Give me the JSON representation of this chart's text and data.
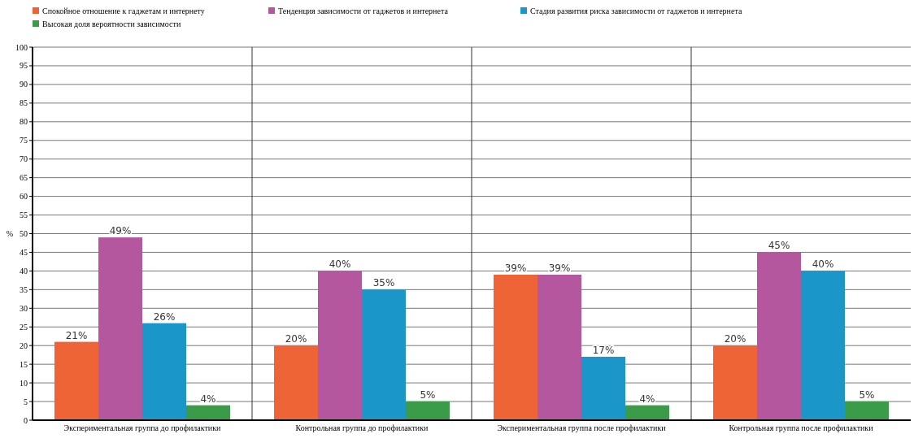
{
  "chart_data": {
    "type": "bar",
    "ylabel": "%",
    "categories": [
      "Экспериментальная группа до профилактики",
      "Контрольная группа до профилактики",
      "Экспериментальная группа после профилактики",
      "Контрольная группа после профилактики"
    ],
    "series": [
      {
        "name": "Спокойное отношение к гаджетам и интернету",
        "color": "#ef6437",
        "values": [
          21,
          20,
          39,
          20
        ],
        "value_labels": [
          "21%",
          "20%",
          "39%",
          "20%"
        ]
      },
      {
        "name": "Тенденция зависимости от гаджетов и интернета",
        "color": "#b4579f",
        "values": [
          49,
          40,
          39,
          45
        ],
        "value_labels": [
          "49%",
          "40%",
          "39%",
          "45%"
        ]
      },
      {
        "name": "Стадия развития риска зависимости от гаджетов и интернета",
        "color": "#1b96c9",
        "values": [
          26,
          35,
          17,
          40
        ],
        "value_labels": [
          "26%",
          "35%",
          "17%",
          "40%"
        ]
      },
      {
        "name": "Высокая доля вероятности зависимости",
        "color": "#3a9b48",
        "values": [
          4,
          5,
          4,
          5
        ],
        "value_labels": [
          "4%",
          "5%",
          "4%",
          "5%"
        ]
      }
    ],
    "ylim": [
      0,
      100
    ],
    "yticks": [
      0,
      5,
      10,
      15,
      20,
      25,
      30,
      35,
      40,
      45,
      50,
      55,
      60,
      65,
      70,
      75,
      80,
      85,
      90,
      95,
      100
    ],
    "grid": true,
    "legend": "top left"
  }
}
